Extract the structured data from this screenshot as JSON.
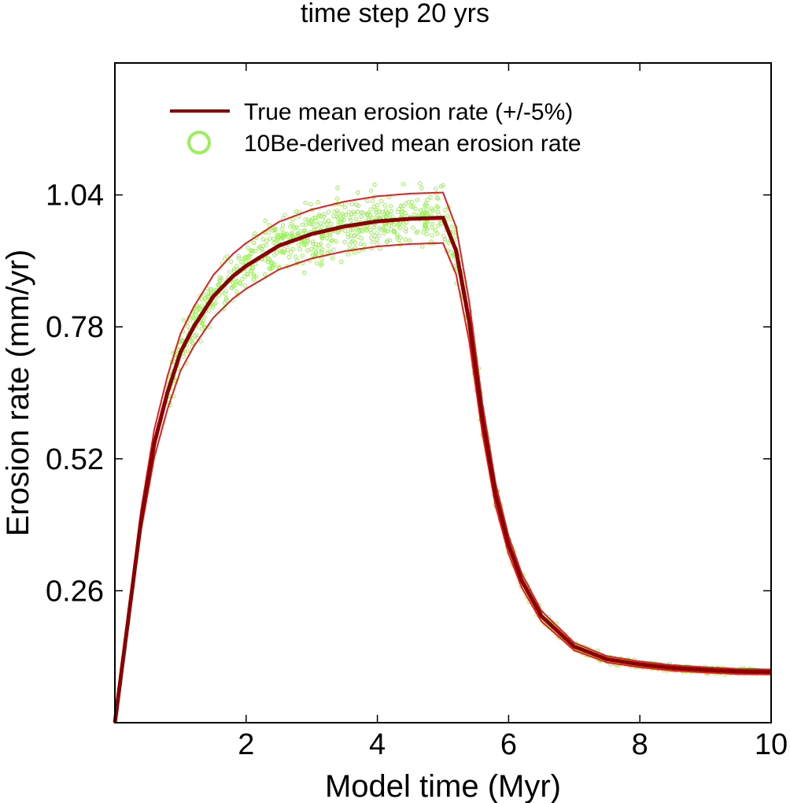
{
  "chart_data": {
    "type": "scatter",
    "title": "time step 20 yrs",
    "xlabel": "Model time (Myr)",
    "ylabel": "Erosion rate (mm/yr)",
    "xlim": [
      0,
      10
    ],
    "ylim": [
      0,
      1.3
    ],
    "x_ticks": [
      2,
      4,
      6,
      8,
      10
    ],
    "x_tick_labels": [
      "2",
      "4",
      "6",
      "8",
      "10"
    ],
    "y_ticks": [
      0.26,
      0.52,
      0.78,
      1.04
    ],
    "y_tick_labels": [
      "0.26",
      "0.52",
      "0.78",
      "1.04"
    ],
    "grid": false,
    "legend_position": "top-left",
    "colors": {
      "mean_line": "#8b0000",
      "band_lines": "#e0201e",
      "scatter": "#9af05a",
      "axes": "#000000"
    },
    "series": [
      {
        "name": "True mean erosion rate (+/-5%)",
        "kind": "line",
        "x": [
          0,
          0.2,
          0.4,
          0.6,
          0.8,
          1.0,
          1.2,
          1.5,
          1.8,
          2.0,
          2.5,
          3.0,
          3.5,
          4.0,
          4.5,
          5.0,
          5.2,
          5.4,
          5.6,
          5.8,
          6.0,
          6.2,
          6.5,
          7.0,
          7.5,
          8.0,
          8.5,
          9.0,
          9.5,
          10.0
        ],
        "values": [
          0.0,
          0.2,
          0.4,
          0.55,
          0.65,
          0.73,
          0.78,
          0.84,
          0.88,
          0.9,
          0.94,
          0.963,
          0.978,
          0.988,
          0.993,
          0.995,
          0.93,
          0.79,
          0.6,
          0.45,
          0.35,
          0.28,
          0.21,
          0.15,
          0.125,
          0.115,
          0.108,
          0.104,
          0.101,
          0.1
        ],
        "band_fraction": 0.05
      },
      {
        "name": "10Be-derived mean erosion rate",
        "kind": "scatter",
        "description_of_points": "dense cloud of estimates scattered around the true mean curve, spread roughly +/-5% with some outliers"
      }
    ]
  }
}
